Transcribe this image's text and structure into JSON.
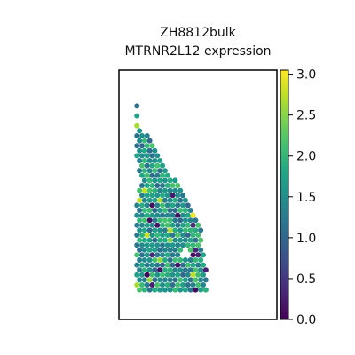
{
  "chart_data": {
    "type": "heatmap",
    "plot_kind": "spatial hexagonal spot plot",
    "title_lines": [
      "ZH8812bulk",
      "MTRNR2L12 expression"
    ],
    "xlabel": "",
    "ylabel": "",
    "colormap": "viridis",
    "colorbar": {
      "vmin": 0.0,
      "vmax": 3.05,
      "ticks": [
        0.0,
        0.5,
        1.0,
        1.5,
        2.0,
        2.5,
        3.0
      ],
      "tick_labels": [
        "0.0",
        "0.5",
        "1.0",
        "1.5",
        "2.0",
        "2.5",
        "3.0"
      ]
    },
    "value_distribution": {
      "typical_range": [
        1.0,
        2.2
      ],
      "dominant_value": 1.7,
      "min_observed": 0.0,
      "max_observed": 3.0
    },
    "grid": false,
    "tissue": {
      "columns": 25,
      "rows": 44,
      "outline_rc": [
        [
          1,
          0.4
        ],
        [
          3,
          -0.8
        ],
        [
          5,
          -1
        ],
        [
          7,
          -0.6
        ],
        [
          9,
          0.3
        ],
        [
          12,
          2.5
        ],
        [
          16,
          4.8
        ],
        [
          20,
          7.2
        ],
        [
          24,
          9.6
        ],
        [
          28,
          11.4
        ],
        [
          32,
          12
        ],
        [
          36,
          12.5
        ],
        [
          39.5,
          13
        ],
        [
          41,
          12.8
        ],
        [
          41.8,
          11.5
        ],
        [
          42,
          7
        ],
        [
          41.8,
          2.5
        ],
        [
          41.5,
          -0.6
        ],
        [
          40.5,
          -1.2
        ],
        [
          34,
          -1.2
        ],
        [
          28,
          -1.1
        ],
        [
          22,
          -1.2
        ],
        [
          16,
          -1.2
        ],
        [
          10,
          -1.2
        ],
        [
          7,
          -1.2
        ],
        [
          2.5,
          -0.9
        ]
      ],
      "holes_rc": [
        [
          [
            13,
            -1.5
          ],
          [
            16,
            -0.6
          ],
          [
            20,
            -0.4
          ],
          [
            23,
            -1
          ],
          [
            23.5,
            -1.6
          ]
        ],
        [
          [
            14.5,
            5
          ],
          [
            16,
            5.3
          ],
          [
            17,
            6.8
          ],
          [
            18,
            8.2
          ],
          [
            18.3,
            10
          ],
          [
            17,
            10.4
          ],
          [
            15.5,
            10
          ],
          [
            14.5,
            8.5
          ],
          [
            14,
            6.5
          ]
        ],
        [
          [
            18,
            10.5
          ],
          [
            19.5,
            10.3
          ],
          [
            21,
            11.2
          ],
          [
            22.3,
            12.3
          ],
          [
            23,
            14
          ],
          [
            21.5,
            14.2
          ],
          [
            19.5,
            13.5
          ],
          [
            18.3,
            12.3
          ]
        ],
        [
          [
            22,
            12.2
          ],
          [
            23.5,
            12.4
          ],
          [
            24.5,
            13.4
          ],
          [
            24.2,
            14.4
          ],
          [
            22.8,
            14.3
          ]
        ],
        [
          [
            33,
            8
          ],
          [
            34.5,
            8
          ],
          [
            35,
            9
          ],
          [
            34,
            9.8
          ],
          [
            33,
            9.3
          ]
        ]
      ],
      "seed": 8812
    }
  }
}
